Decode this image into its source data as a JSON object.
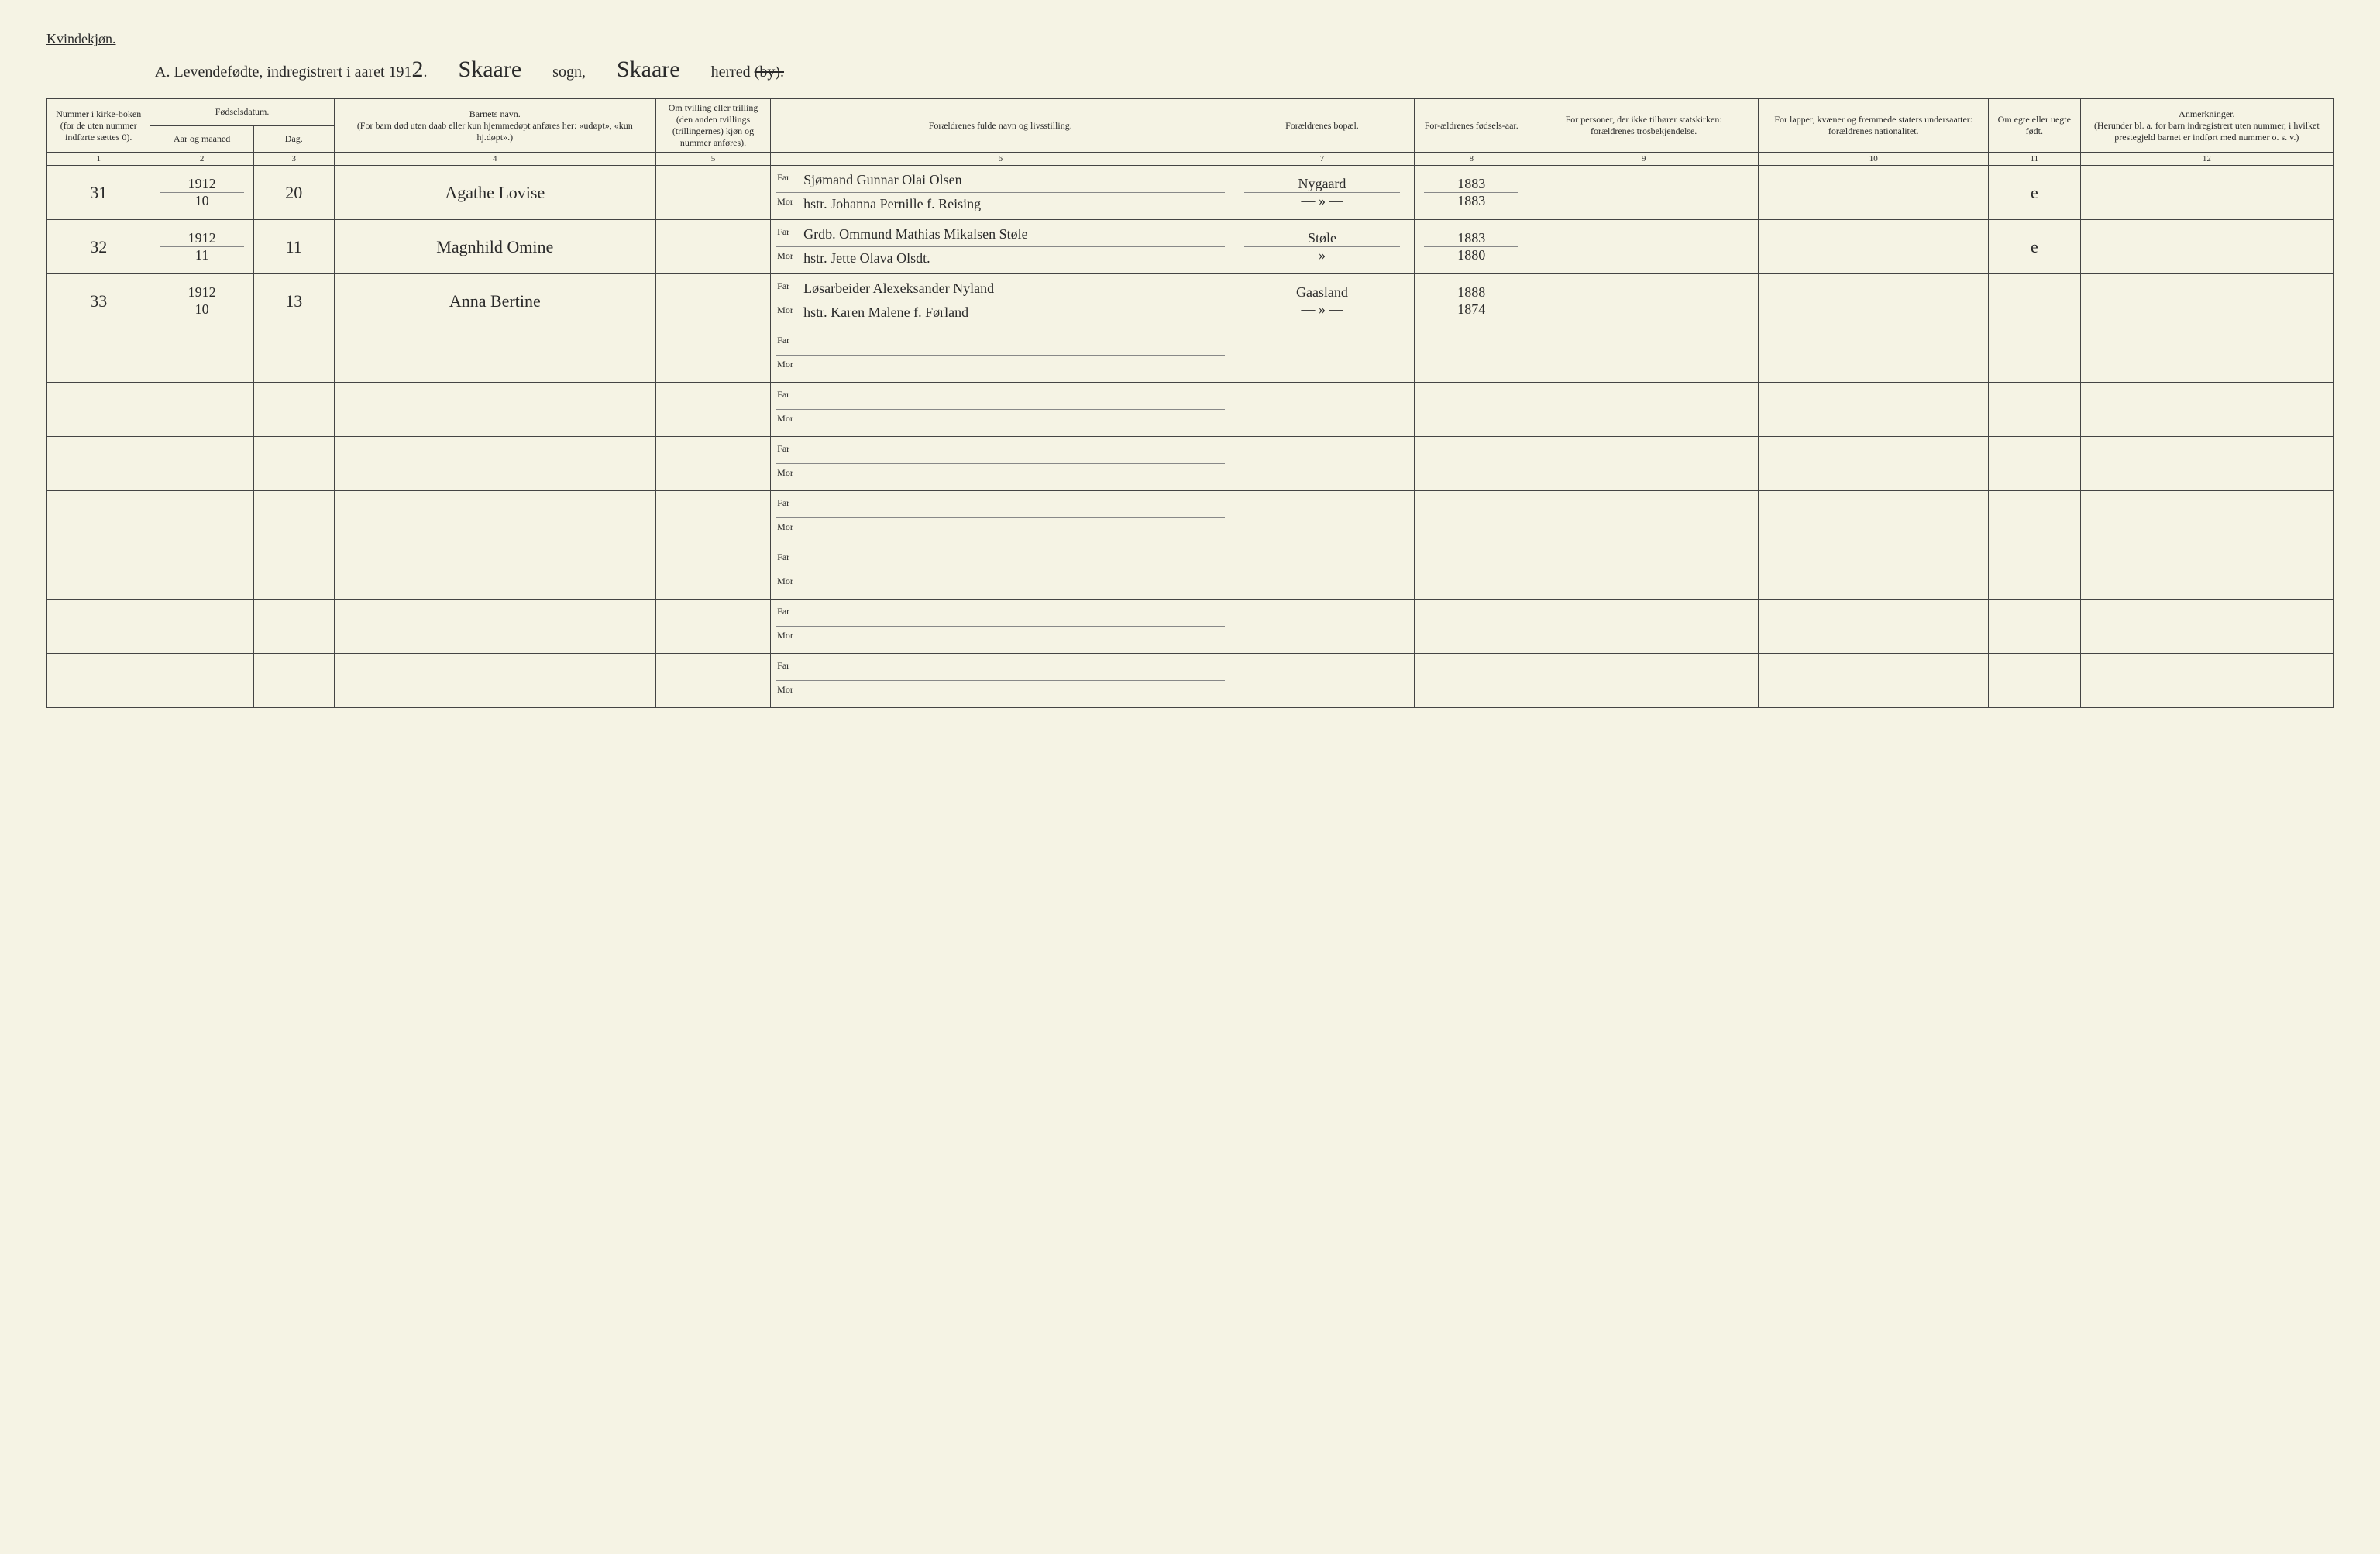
{
  "labels": {
    "gender": "Kvindekjøn.",
    "title_prefix": "A.  Levendefødte, indregistrert i aaret 191",
    "year_suffix": "2",
    "period": ".",
    "sogn_word": "sogn,",
    "herred_word": "herred",
    "by_word": "(by).",
    "sogn_value": "Skaare",
    "herred_value": "Skaare",
    "far": "Far",
    "mor": "Mor"
  },
  "columns": {
    "c1": "Nummer i kirke-boken (for de uten nummer indførte sættes 0).",
    "c2_group": "Fødselsdatum.",
    "c2a": "Aar og maaned",
    "c2b": "Dag.",
    "c3": "Barnets navn.\n(For barn død uten daab eller kun hjemmedøpt anføres her: «udøpt», «kun hj.døpt».)",
    "c4": "Om tvilling eller trilling (den anden tvillings (trillingernes) kjøn og nummer anføres).",
    "c5": "Forældrenes fulde navn og livsstilling.",
    "c6": "Forældrenes bopæl.",
    "c7": "For-ældrenes fødsels-aar.",
    "c8": "For personer, der ikke tilhører statskirken:\nforældrenes trosbekjendelse.",
    "c9": "For lapper, kvæner og fremmede staters undersaatter:\nforældrenes nationalitet.",
    "c10": "Om egte eller uegte født.",
    "c11": "Anmerkninger.\n(Herunder bl. a. for barn indregistrert uten nummer, i hvilket prestegjeld barnet er indført med nummer o. s. v.)"
  },
  "colnums": [
    "1",
    "2",
    "3",
    "4",
    "5",
    "6",
    "7",
    "8",
    "9",
    "10",
    "11",
    "12"
  ],
  "rows": [
    {
      "num": "31",
      "year": "1912",
      "month": "10",
      "day": "20",
      "child": "Agathe Lovise",
      "far": "Sjømand Gunnar Olai Olsen",
      "mor": "hstr. Johanna Pernille f. Reising",
      "bopel_far": "Nygaard",
      "bopel_mor": "— » —",
      "faar": "1883",
      "maar": "1883",
      "egte": "e"
    },
    {
      "num": "32",
      "year": "1912",
      "month": "11",
      "day": "11",
      "child": "Magnhild Omine",
      "far": "Grdb. Ommund Mathias Mikalsen Støle",
      "mor": "hstr. Jette Olava Olsdt.",
      "bopel_far": "Støle",
      "bopel_mor": "— » —",
      "faar": "1883",
      "maar": "1880",
      "egte": "e"
    },
    {
      "num": "33",
      "year": "1912",
      "month": "10",
      "day": "13",
      "child": "Anna Bertine",
      "far": "Løsarbeider Alexeksander Nyland",
      "mor": "hstr. Karen Malene f. Førland",
      "bopel_far": "Gaasland",
      "bopel_mor": "— » —",
      "faar": "1888",
      "maar": "1874",
      "egte": ""
    }
  ],
  "empty_rows": 7,
  "col_widths_pct": [
    4.5,
    4.5,
    3.5,
    14,
    5,
    20,
    8,
    5,
    10,
    10,
    4,
    11
  ]
}
